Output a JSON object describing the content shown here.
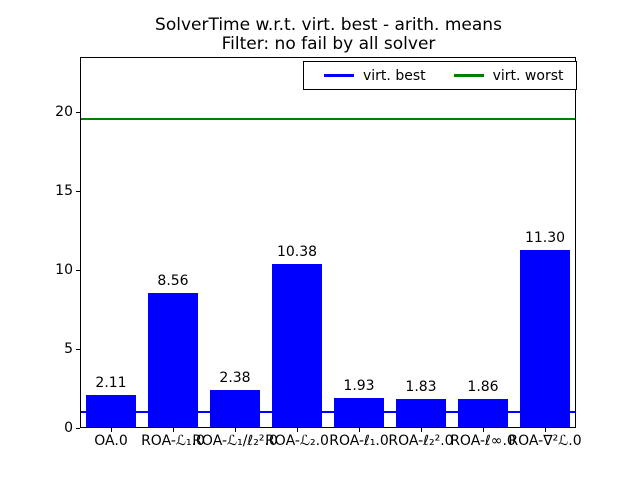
{
  "figure": {
    "title": "SolverTime w.r.t. virt. best - arith. means",
    "subtitle": "Filter: no fail by all solver"
  },
  "legend": {
    "position": "upper right",
    "entries": [
      {
        "label": "virt. best",
        "color": "#0000ff"
      },
      {
        "label": "virt. worst",
        "color": "#008000"
      }
    ]
  },
  "chart_data": {
    "type": "bar",
    "title": "SolverTime w.r.t. virt. best - arith. means",
    "subtitle": "Filter: no fail by all solver",
    "categories": [
      "OA.0",
      "ROA-ℒ₁.0",
      "ROA-ℒ₁/ℓ₂².0",
      "ROA-ℒ₂.0",
      "ROA-ℓ₁.0",
      "ROA-ℓ₂².0",
      "ROA-ℓ∞.0",
      "ROA-∇²ℒ.0"
    ],
    "values": [
      2.11,
      8.56,
      2.38,
      10.38,
      1.93,
      1.83,
      1.86,
      11.3
    ],
    "bar_labels": [
      "2.11",
      "8.56",
      "2.38",
      "10.38",
      "1.93",
      "1.83",
      "1.86",
      "11.30"
    ],
    "bar_color": "#0000ff",
    "xlabel": "",
    "ylabel": "",
    "yticks": [
      0,
      5,
      10,
      15,
      20
    ],
    "ylim": [
      0,
      23.5
    ],
    "grid": false,
    "legend_position": "upper right",
    "reference_lines": [
      {
        "name": "virt. best",
        "value": 1.0,
        "color": "#0000ff"
      },
      {
        "name": "virt. worst",
        "value": 19.6,
        "color": "#008000"
      }
    ]
  }
}
